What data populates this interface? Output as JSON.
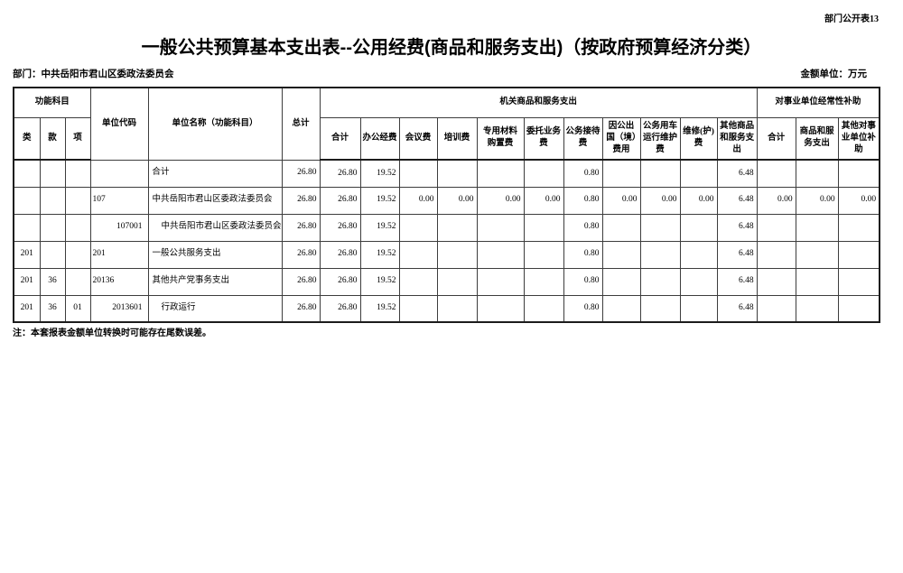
{
  "page": {
    "doc_label": "部门公开表13",
    "title": "一般公共预算基本支出表--公用经费(商品和服务支出)（按政府预算经济分类）",
    "department_label": "部门：中共岳阳市君山区委政法委员会",
    "amount_unit_label": "金额单位：万元",
    "footnote": "注：本套报表金额单位转换时可能存在尾数误差。"
  },
  "table": {
    "header": {
      "func_group": "功能科目",
      "func_cols": [
        "类",
        "款",
        "项"
      ],
      "unit_code": "单位代码",
      "unit_name": "单位名称（功能科目）",
      "total": "总计",
      "group1": "机关商品和服务支出",
      "group1_cols": [
        "合计",
        "办公经费",
        "会议费",
        "培训费",
        "专用材料购置费",
        "委托业务费",
        "公务接待费",
        "因公出国（境）费用",
        "公务用车运行维护费",
        "维修(护)费",
        "其他商品和服务支出"
      ],
      "group2": "对事业单位经常性补助",
      "group2_cols": [
        "合计",
        "商品和服务支出",
        "其他对事业单位补助"
      ]
    },
    "rows": [
      {
        "lei": "",
        "kuan": "",
        "xiang": "",
        "code": "",
        "code_align": "left",
        "name": "合计",
        "indent": 0,
        "values": [
          "26.80",
          "26.80",
          "19.52",
          "",
          "",
          "",
          "",
          "0.80",
          "",
          "",
          "",
          "6.48",
          "",
          "",
          ""
        ]
      },
      {
        "lei": "",
        "kuan": "",
        "xiang": "",
        "code": "107",
        "code_align": "left",
        "name": "中共岳阳市君山区委政法委员会",
        "indent": 0,
        "values": [
          "26.80",
          "26.80",
          "19.52",
          "0.00",
          "0.00",
          "0.00",
          "0.00",
          "0.80",
          "0.00",
          "0.00",
          "0.00",
          "6.48",
          "0.00",
          "0.00",
          "0.00"
        ]
      },
      {
        "lei": "",
        "kuan": "",
        "xiang": "",
        "code": "107001",
        "code_align": "right",
        "name": "中共岳阳市君山区委政法委员会",
        "indent": 1,
        "values": [
          "26.80",
          "26.80",
          "19.52",
          "",
          "",
          "",
          "",
          "0.80",
          "",
          "",
          "",
          "6.48",
          "",
          "",
          ""
        ]
      },
      {
        "lei": "201",
        "kuan": "",
        "xiang": "",
        "code": "201",
        "code_align": "left",
        "name": "一般公共服务支出",
        "indent": 0,
        "values": [
          "26.80",
          "26.80",
          "19.52",
          "",
          "",
          "",
          "",
          "0.80",
          "",
          "",
          "",
          "6.48",
          "",
          "",
          ""
        ]
      },
      {
        "lei": "201",
        "kuan": "36",
        "xiang": "",
        "code": "20136",
        "code_align": "left",
        "name": "其他共产党事务支出",
        "indent": 0,
        "values": [
          "26.80",
          "26.80",
          "19.52",
          "",
          "",
          "",
          "",
          "0.80",
          "",
          "",
          "",
          "6.48",
          "",
          "",
          ""
        ]
      },
      {
        "lei": "201",
        "kuan": "36",
        "xiang": "01",
        "code": "2013601",
        "code_align": "right",
        "name": "行政运行",
        "indent": 1,
        "values": [
          "26.80",
          "26.80",
          "19.52",
          "",
          "",
          "",
          "",
          "0.80",
          "",
          "",
          "",
          "6.48",
          "",
          "",
          ""
        ]
      }
    ]
  }
}
